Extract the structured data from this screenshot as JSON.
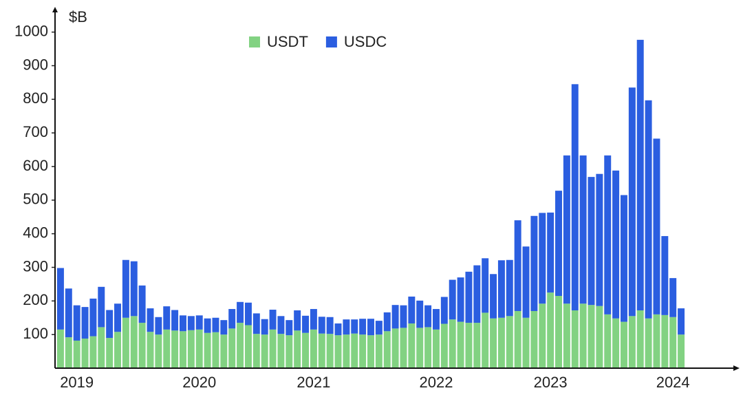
{
  "chart_data": {
    "type": "stacked_bar",
    "y_label": "$B",
    "categories": [
      null,
      null,
      "2019",
      null,
      null,
      null,
      null,
      null,
      null,
      null,
      null,
      null,
      null,
      null,
      null,
      null,
      null,
      "2020",
      null,
      null,
      null,
      null,
      null,
      null,
      null,
      null,
      null,
      null,
      null,
      null,
      null,
      "2021",
      null,
      null,
      null,
      null,
      null,
      null,
      null,
      null,
      null,
      null,
      null,
      null,
      null,
      null,
      "2022",
      null,
      null,
      null,
      null,
      null,
      null,
      null,
      null,
      null,
      null,
      null,
      null,
      null,
      "2023",
      null,
      null,
      null,
      null,
      null,
      null,
      null,
      null,
      null,
      null,
      null,
      null,
      null,
      null,
      "2024",
      null
    ],
    "series": [
      {
        "name": "USDT",
        "color": "#82d282",
        "values": [
          115,
          92,
          82,
          88,
          95,
          122,
          90,
          108,
          150,
          155,
          135,
          108,
          100,
          115,
          112,
          110,
          113,
          115,
          105,
          107,
          100,
          118,
          135,
          128,
          102,
          100,
          115,
          102,
          98,
          112,
          105,
          115,
          103,
          102,
          98,
          100,
          103,
          100,
          98,
          100,
          110,
          118,
          120,
          133,
          120,
          122,
          115,
          132,
          145,
          138,
          135,
          135,
          165,
          148,
          150,
          155,
          170,
          150,
          170,
          192,
          225,
          215,
          192,
          172,
          192,
          188,
          185,
          160,
          148,
          138,
          155,
          172,
          148,
          160,
          158,
          152,
          100
        ]
      },
      {
        "name": "USDC",
        "color": "#2b5ee0",
        "values": [
          183,
          145,
          105,
          94,
          112,
          120,
          83,
          84,
          172,
          163,
          111,
          70,
          52,
          69,
          61,
          47,
          42,
          42,
          43,
          43,
          43,
          58,
          62,
          67,
          61,
          46,
          59,
          53,
          45,
          60,
          51,
          61,
          50,
          50,
          35,
          45,
          42,
          47,
          49,
          41,
          56,
          70,
          67,
          80,
          81,
          65,
          61,
          80,
          118,
          132,
          152,
          171,
          162,
          132,
          171,
          167,
          270,
          212,
          283,
          270,
          238,
          313,
          441,
          673,
          441,
          381,
          393,
          473,
          440,
          377,
          680,
          805,
          649,
          523,
          235,
          116,
          78
        ]
      }
    ],
    "ylim": [
      0,
      1075
    ],
    "yticks": [
      100,
      200,
      300,
      400,
      500,
      600,
      700,
      800,
      900,
      1000
    ],
    "grid": false
  }
}
